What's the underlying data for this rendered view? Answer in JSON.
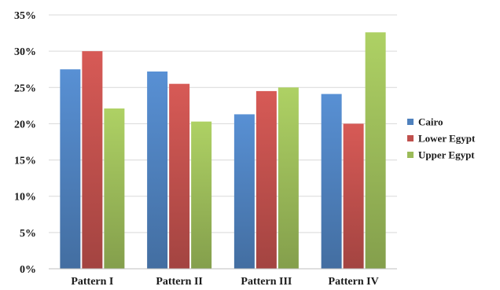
{
  "chart_data": {
    "type": "bar",
    "title": "",
    "xlabel": "",
    "ylabel": "",
    "categories": [
      "Pattern I",
      "Pattern II",
      "Pattern III",
      "Pattern IV"
    ],
    "series": [
      {
        "name": "Cairo",
        "values": [
          27.5,
          27.2,
          21.3,
          24.1
        ],
        "color": "#4f81bd"
      },
      {
        "name": "Lower Egypt",
        "values": [
          30.0,
          25.5,
          24.5,
          20.0
        ],
        "color": "#c0504d"
      },
      {
        "name": "Upper Egypt",
        "values": [
          22.1,
          20.3,
          25.0,
          32.6
        ],
        "color": "#9bbb59"
      }
    ],
    "ylim": [
      0,
      35
    ],
    "yticks": [
      0,
      5,
      10,
      15,
      20,
      25,
      30,
      35
    ],
    "ytick_labels": [
      "0%",
      "5%",
      "10%",
      "15%",
      "20%",
      "25%",
      "30%",
      "35%"
    ],
    "grid": true,
    "legend_position": "right"
  }
}
